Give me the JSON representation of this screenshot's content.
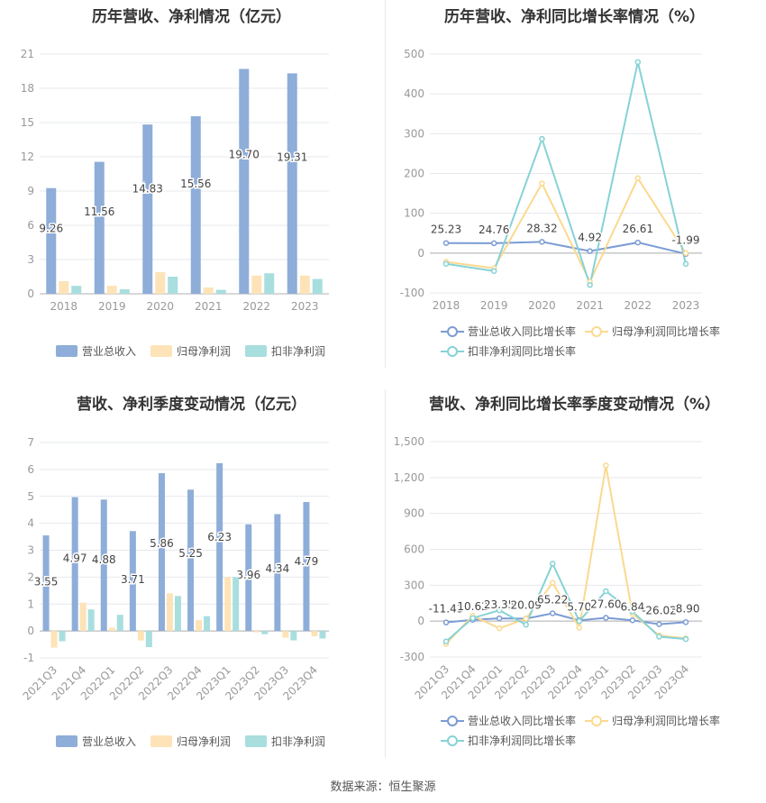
{
  "source": "数据来源：恒生聚源",
  "colors": {
    "c1": "#8eadd9",
    "c2": "#fde3b7",
    "c3": "#a8dede",
    "line1": "#7b9cd4",
    "line2": "#fbd98f",
    "line3": "#86d2d6",
    "axis": "#999999",
    "grid": "#e6e8ee",
    "label": "#444444"
  },
  "chart_data": [
    {
      "type": "bar",
      "title": "历年营收、净利情况（亿元）",
      "categories": [
        "2018",
        "2019",
        "2020",
        "2021",
        "2022",
        "2023"
      ],
      "series": [
        {
          "name": "营业总收入",
          "values": [
            9.26,
            11.56,
            14.83,
            15.56,
            19.7,
            19.31
          ],
          "labels": [
            "9.26",
            "11.56",
            "14.83",
            "15.56",
            "19.70",
            "19.31"
          ]
        },
        {
          "name": "归母净利润",
          "values": [
            1.1,
            0.7,
            1.9,
            0.55,
            1.6,
            1.6
          ]
        },
        {
          "name": "扣非净利润",
          "values": [
            0.7,
            0.4,
            1.5,
            0.35,
            1.8,
            1.3
          ]
        }
      ],
      "yticks": [
        "0",
        "3",
        "6",
        "9",
        "12",
        "15",
        "18",
        "21"
      ],
      "ylim": [
        0,
        21
      ],
      "grid": true,
      "legend": "bottom"
    },
    {
      "type": "line",
      "title": "历年营收、净利同比增长率情况（%）",
      "categories": [
        "2018",
        "2019",
        "2020",
        "2021",
        "2022",
        "2023"
      ],
      "series": [
        {
          "name": "营业总收入同比增长率",
          "values": [
            25.23,
            24.76,
            28.32,
            4.92,
            26.61,
            -1.99
          ],
          "labels": [
            "25.23",
            "24.76",
            "28.32",
            "4.92",
            "26.61",
            "-1.99"
          ]
        },
        {
          "name": "归母净利润同比增长率",
          "values": [
            -22,
            -38,
            175,
            -72,
            188,
            0
          ]
        },
        {
          "name": "扣非净利润同比增长率",
          "values": [
            -27,
            -45,
            287,
            -80,
            480,
            -27
          ]
        }
      ],
      "yticks": [
        "-100",
        "0",
        "100",
        "200",
        "300",
        "400",
        "500"
      ],
      "ylim": [
        -100,
        500
      ],
      "grid": true,
      "legend": "bottom"
    },
    {
      "type": "bar",
      "title": "营收、净利季度变动情况（亿元）",
      "categories": [
        "2021Q3",
        "2021Q4",
        "2022Q1",
        "2022Q2",
        "2022Q3",
        "2022Q4",
        "2023Q1",
        "2023Q2",
        "2023Q3",
        "2023Q4"
      ],
      "series": [
        {
          "name": "营业总收入",
          "values": [
            3.55,
            4.97,
            4.88,
            3.71,
            5.86,
            5.25,
            6.23,
            3.96,
            4.34,
            4.79
          ],
          "labels": [
            "3.55",
            "4.97",
            "4.88",
            "3.71",
            "5.86",
            "5.25",
            "6.23",
            "3.96",
            "4.34",
            "4.79"
          ]
        },
        {
          "name": "归母净利润",
          "values": [
            -0.62,
            1.05,
            0.12,
            -0.35,
            1.4,
            0.4,
            2.0,
            -0.05,
            -0.25,
            -0.2
          ]
        },
        {
          "name": "扣非净利润",
          "values": [
            -0.38,
            0.8,
            0.6,
            -0.6,
            1.3,
            0.55,
            2.0,
            -0.12,
            -0.35,
            -0.28
          ]
        }
      ],
      "yticks": [
        "-1",
        "0",
        "1",
        "2",
        "3",
        "4",
        "5",
        "6",
        "7"
      ],
      "ylim": [
        -1,
        7
      ],
      "grid": true,
      "legend": "bottom"
    },
    {
      "type": "line",
      "title": "营收、净利同比增长率季度变动情况（%）",
      "categories": [
        "2021Q3",
        "2021Q4",
        "2022Q1",
        "2022Q2",
        "2022Q3",
        "2022Q4",
        "2023Q1",
        "2023Q2",
        "2023Q3",
        "2023Q4"
      ],
      "series": [
        {
          "name": "营业总收入同比增长率",
          "values": [
            -11.43,
            10.62,
            23.35,
            20.09,
            65.22,
            5.7,
            27.6,
            6.84,
            -26.02,
            -8.9
          ],
          "labels": [
            "-11.43",
            "10.62",
            "23.35",
            "20.09",
            "65.22",
            "5.70",
            "27.60",
            "6.84",
            "-26.02",
            "-8.90"
          ]
        },
        {
          "name": "归母净利润同比增长率",
          "values": [
            -190,
            45,
            -60,
            20,
            320,
            -55,
            1300,
            60,
            -120,
            -145
          ]
        },
        {
          "name": "扣非净利润同比增长率",
          "values": [
            -170,
            25,
            90,
            -30,
            480,
            0,
            250,
            80,
            -130,
            -150
          ]
        }
      ],
      "yticks": [
        "-300",
        "0",
        "300",
        "600",
        "900",
        "1,200",
        "1,500"
      ],
      "ylim": [
        -300,
        1500
      ],
      "grid": true,
      "legend": "bottom"
    }
  ]
}
